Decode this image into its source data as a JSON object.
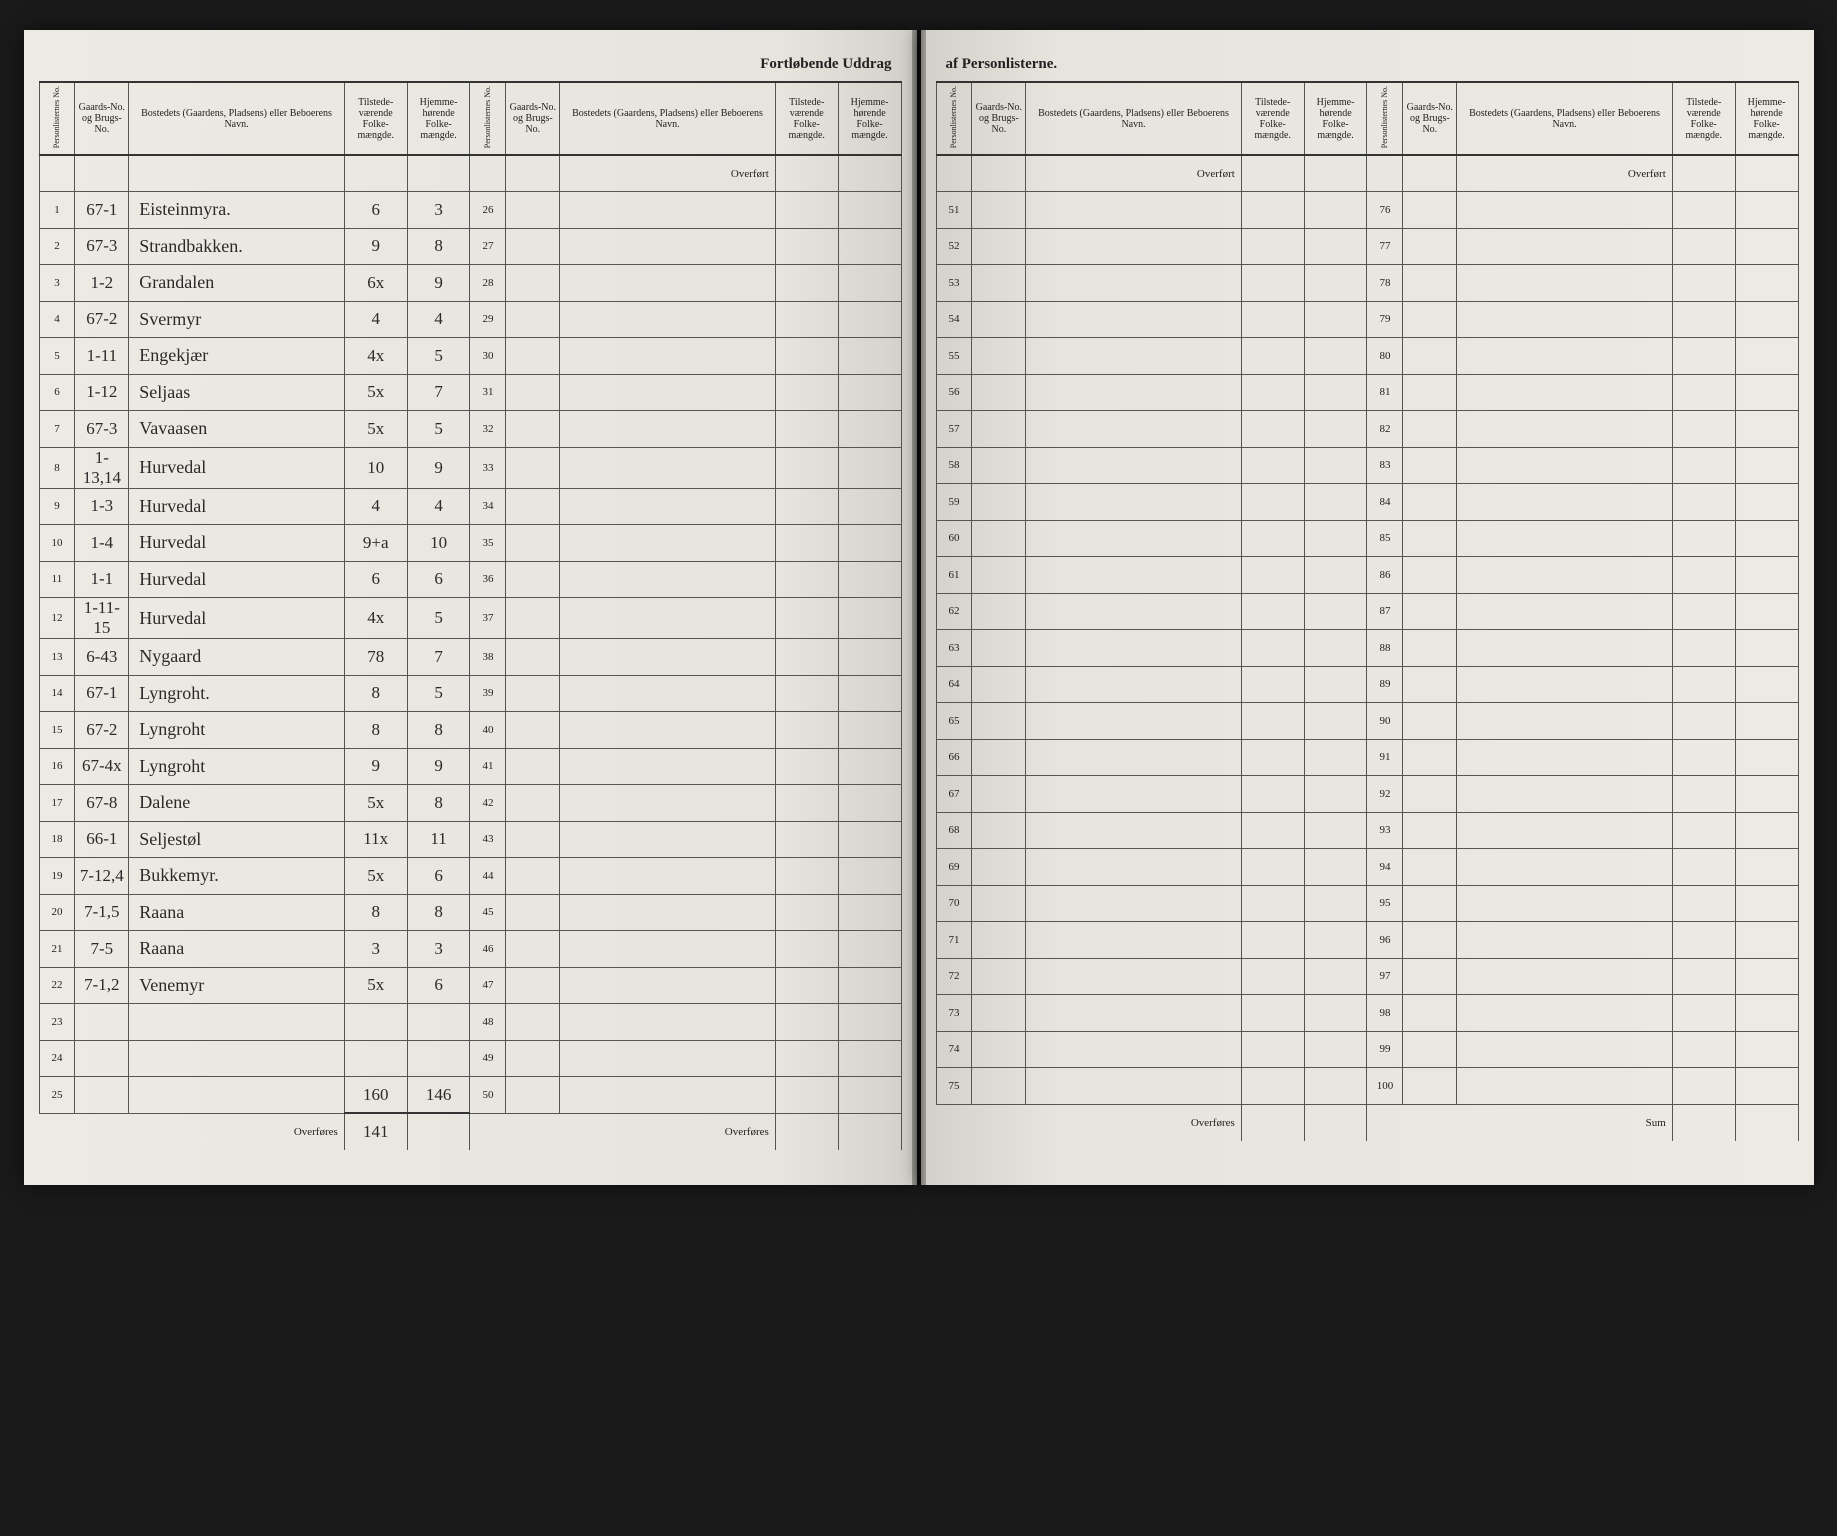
{
  "title_left": "Fortløbende Uddrag",
  "title_right": "af Personlisterne.",
  "headers": {
    "person_no": "Personlisternes No.",
    "gaards_no": "Gaards-No. og Brugs-No.",
    "bosted": "Bostedets (Gaardens, Pladsens) eller Beboerens Navn.",
    "tilstede": "Tilstede-værende Folke-mængde.",
    "hjemme": "Hjemme-hørende Folke-mængde.",
    "overfort": "Overført",
    "overfores": "Overføres",
    "sum": "Sum"
  },
  "left_block1": [
    {
      "no": "1",
      "gard": "67-1",
      "name": "Eisteinmyra.",
      "til": "6",
      "hjem": "3"
    },
    {
      "no": "2",
      "gard": "67-3",
      "name": "Strandbakken.",
      "til": "9",
      "hjem": "8"
    },
    {
      "no": "3",
      "gard": "1-2",
      "name": "Grandalen",
      "til": "6x",
      "hjem": "9"
    },
    {
      "no": "4",
      "gard": "67-2",
      "name": "Svermyr",
      "til": "4",
      "hjem": "4"
    },
    {
      "no": "5",
      "gard": "1-11",
      "name": "Engekjær",
      "til": "4x",
      "hjem": "5"
    },
    {
      "no": "6",
      "gard": "1-12",
      "name": "Seljaas",
      "til": "5x",
      "hjem": "7"
    },
    {
      "no": "7",
      "gard": "67-3",
      "name": "Vavaasen",
      "til": "5x",
      "hjem": "5"
    },
    {
      "no": "8",
      "gard": "1-13,14",
      "name": "Hurvedal",
      "til": "10",
      "hjem": "9"
    },
    {
      "no": "9",
      "gard": "1-3",
      "name": "Hurvedal",
      "til": "4",
      "hjem": "4"
    },
    {
      "no": "10",
      "gard": "1-4",
      "name": "Hurvedal",
      "til": "9+a",
      "hjem": "10"
    },
    {
      "no": "11",
      "gard": "1-1",
      "name": "Hurvedal",
      "til": "6",
      "hjem": "6"
    },
    {
      "no": "12",
      "gard": "1-11-15",
      "name": "Hurvedal",
      "til": "4x",
      "hjem": "5"
    },
    {
      "no": "13",
      "gard": "6-43",
      "name": "Nygaard",
      "til": "78",
      "hjem": "7"
    },
    {
      "no": "14",
      "gard": "67-1",
      "name": "Lyngroht.",
      "til": "8",
      "hjem": "5"
    },
    {
      "no": "15",
      "gard": "67-2",
      "name": "Lyngroht",
      "til": "8",
      "hjem": "8"
    },
    {
      "no": "16",
      "gard": "67-4x",
      "name": "Lyngroht",
      "til": "9",
      "hjem": "9"
    },
    {
      "no": "17",
      "gard": "67-8",
      "name": "Dalene",
      "til": "5x",
      "hjem": "8"
    },
    {
      "no": "18",
      "gard": "66-1",
      "name": "Seljestøl",
      "til": "11x",
      "hjem": "11"
    },
    {
      "no": "19",
      "gard": "7-12,4",
      "name": "Bukkemyr.",
      "til": "5x",
      "hjem": "6"
    },
    {
      "no": "20",
      "gard": "7-1,5",
      "name": "Raana",
      "til": "8",
      "hjem": "8"
    },
    {
      "no": "21",
      "gard": "7-5",
      "name": "Raana",
      "til": "3",
      "hjem": "3"
    },
    {
      "no": "22",
      "gard": "7-1,2",
      "name": "Venemyr",
      "til": "5x",
      "hjem": "6"
    },
    {
      "no": "23",
      "gard": "",
      "name": "",
      "til": "",
      "hjem": ""
    },
    {
      "no": "24",
      "gard": "",
      "name": "",
      "til": "",
      "hjem": ""
    },
    {
      "no": "25",
      "gard": "",
      "name": "",
      "til": "160",
      "hjem": "146"
    }
  ],
  "left_block2_start": 26,
  "right_block1_start": 51,
  "right_block2_start": 76,
  "overfores_total": "141"
}
